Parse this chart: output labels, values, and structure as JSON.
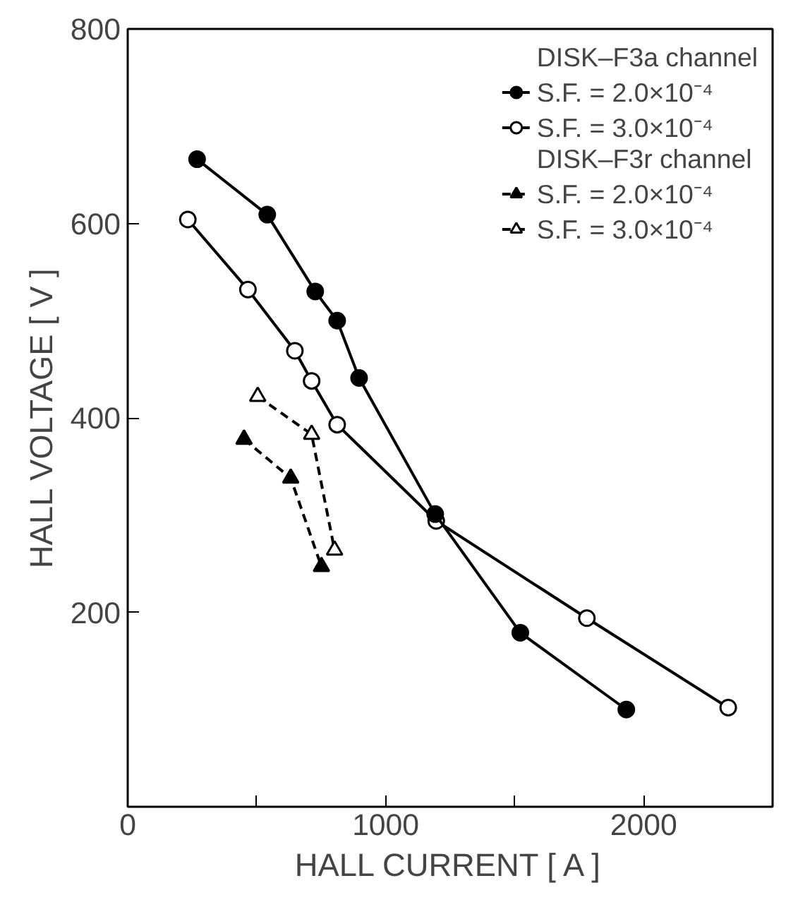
{
  "chart_data": {
    "type": "line",
    "xlabel": "HALL CURRENT [ A ]",
    "ylabel": "HALL VOLTAGE [ V ]",
    "annotations": [
      "DISK–F3a channel",
      "DISK–F3r channel"
    ],
    "series": [
      {
        "name": "S.F. = 2.0×10⁻⁴",
        "color": "#000000",
        "marker": "circle",
        "line_style": "solid",
        "x": [
          269,
          541,
          727,
          812,
          897,
          1192,
          1522,
          1933
        ],
        "values": [
          666,
          609,
          530,
          500,
          441,
          301,
          179,
          100
        ]
      },
      {
        "name": "S.F. = 3.0×10⁻⁴",
        "color": "#000000",
        "colors": [
          "#ffffff",
          "#ffffff",
          "#ffffff",
          "#ffffff",
          "#ffffff",
          "#ffffff",
          "#ffffff",
          "#ffffff"
        ],
        "marker": "circle",
        "line_style": "solid",
        "x": [
          233,
          466,
          648,
          713,
          812,
          1196,
          1780,
          2328
        ],
        "values": [
          604,
          532,
          469,
          438,
          393,
          294,
          194,
          102
        ]
      },
      {
        "name": "S.F. = 2.0×10⁻⁴",
        "color": "#000000",
        "marker": "triangle",
        "line_style": "dashed",
        "x": [
          451,
          632,
          751
        ],
        "values": [
          378,
          338,
          247
        ]
      },
      {
        "name": "S.F. = 3.0×10⁻⁴",
        "color": "#000000",
        "colors": [
          "#ffffff",
          "#ffffff",
          "#ffffff"
        ],
        "marker": "triangle",
        "line_style": "dashed",
        "x": [
          504,
          713,
          802
        ],
        "values": [
          422,
          383,
          264
        ]
      }
    ],
    "xlim": [
      0,
      2500
    ],
    "xticks": [
      0,
      {
        "value": 500,
        "label": null
      },
      1000,
      {
        "value": 1500,
        "label": null
      },
      2000
    ],
    "ylim": [
      0,
      800
    ],
    "yticks": [
      {
        "value": 0,
        "label": null
      },
      200,
      400,
      600,
      800
    ],
    "grid": false,
    "legend": "top right"
  }
}
